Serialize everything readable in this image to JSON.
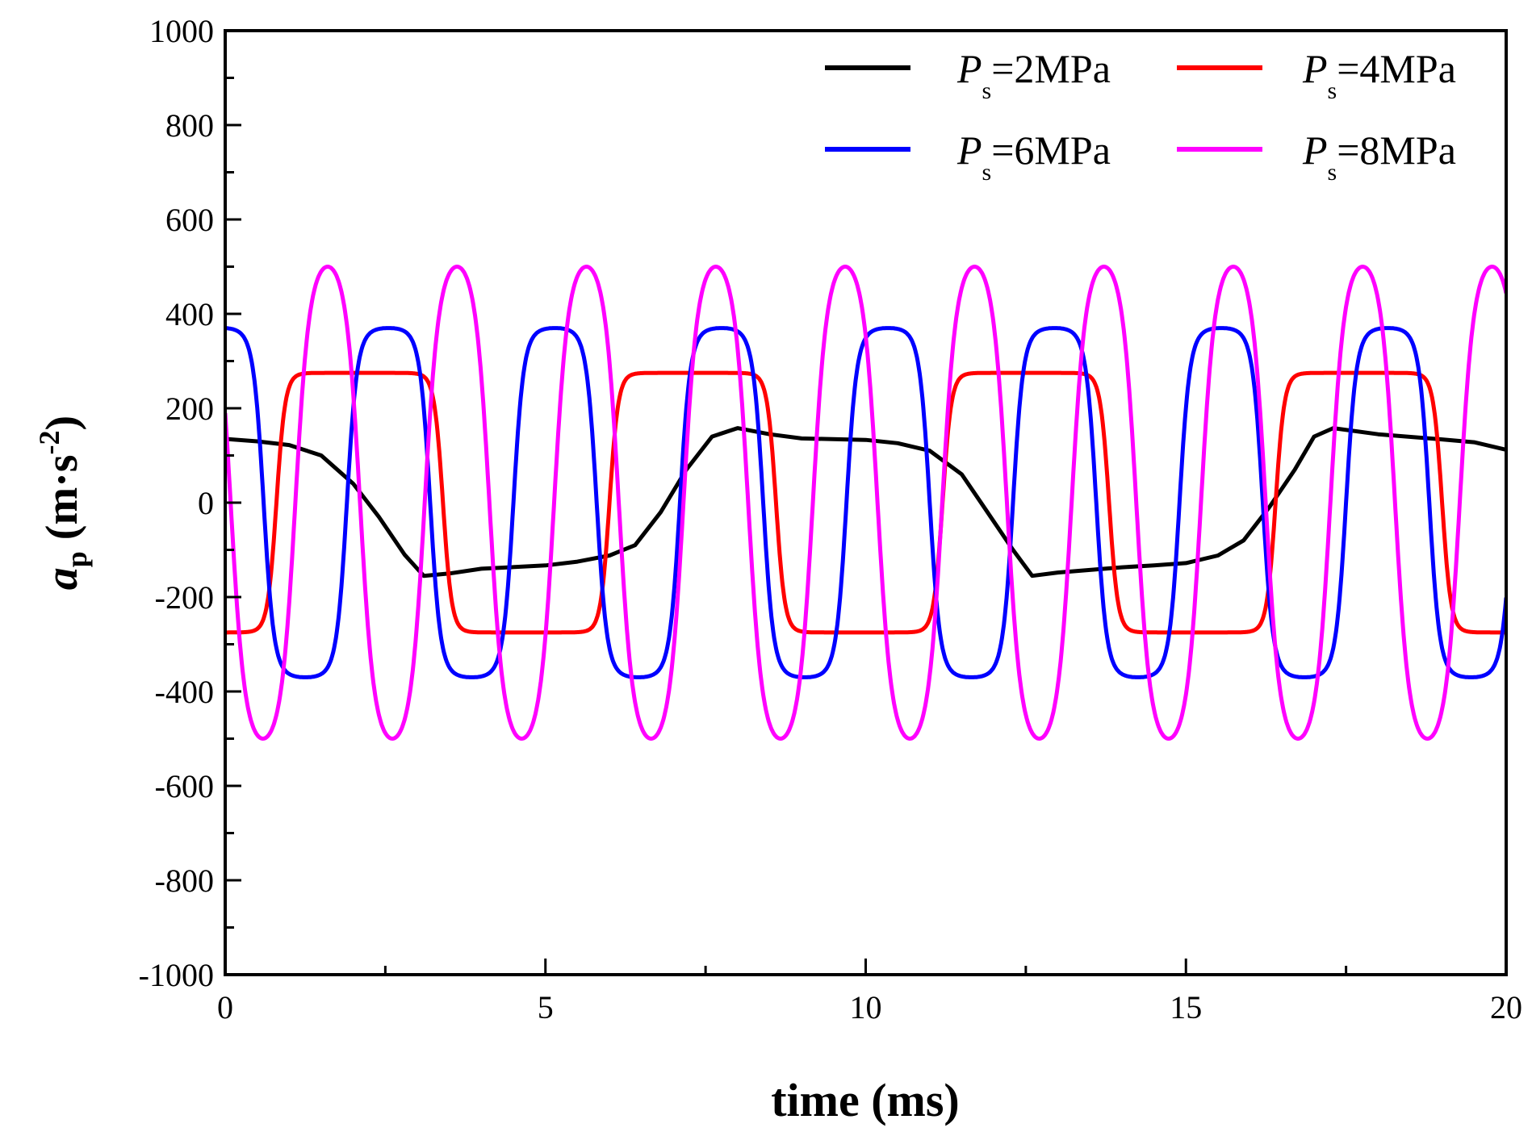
{
  "chart_data": {
    "type": "line",
    "title": "",
    "xlabel": "time (ms)",
    "ylabel": {
      "symbol": "a",
      "subscript": "p",
      "unit_open": "(m·s",
      "unit_sup": "-2",
      "unit_close": ")"
    },
    "xlim": [
      0,
      20
    ],
    "ylim": [
      -1000,
      1000
    ],
    "xticks": [
      0,
      5,
      10,
      15,
      20
    ],
    "xtick_labels": [
      "0",
      "5",
      "10",
      "15",
      "20"
    ],
    "yticks": [
      -1000,
      -800,
      -600,
      -400,
      -200,
      0,
      200,
      400,
      600,
      800,
      1000
    ],
    "ytick_labels": [
      "-1000",
      "-800",
      "-600",
      "-400",
      "-200",
      "0",
      "200",
      "400",
      "600",
      "800",
      "1000"
    ],
    "grid": false,
    "legend_position": "top-right",
    "series": [
      {
        "name": "Ps=2MPa",
        "legend": {
          "p": "P",
          "sub": "s",
          "rest": "=2MPa"
        },
        "color": "#000000",
        "x": [
          0,
          0.5,
          1.0,
          1.5,
          2.0,
          2.4,
          2.8,
          3.1,
          3.5,
          4.0,
          5.0,
          5.5,
          6.0,
          6.4,
          6.8,
          7.2,
          7.6,
          8.0,
          8.5,
          9.0,
          10.0,
          10.5,
          11.0,
          11.5,
          11.9,
          12.3,
          12.6,
          13.0,
          14.0,
          14.5,
          15.0,
          15.5,
          15.9,
          16.3,
          16.7,
          17.0,
          17.3,
          18.0,
          19.0,
          19.5,
          20.0
        ],
        "values": [
          135,
          130,
          122,
          100,
          40,
          -30,
          -110,
          -155,
          -150,
          -140,
          -133,
          -125,
          -112,
          -90,
          -20,
          70,
          140,
          158,
          145,
          136,
          133,
          126,
          110,
          60,
          -20,
          -100,
          -155,
          -148,
          -137,
          -133,
          -128,
          -112,
          -80,
          -10,
          70,
          140,
          158,
          145,
          134,
          128,
          112
        ]
      },
      {
        "name": "Ps=4MPa",
        "legend": {
          "p": "P",
          "sub": "s",
          "rest": "=4MPa"
        },
        "color": "#ff0000",
        "type": "square-wave",
        "amplitude": 275,
        "period": 5.2,
        "phase": 2.1,
        "sharpness": 6
      },
      {
        "name": "Ps=6MPa",
        "legend": {
          "p": "P",
          "sub": "s",
          "rest": "=6MPa"
        },
        "color": "#0000ff",
        "type": "square-wave",
        "amplitude": 370,
        "period": 2.6,
        "phase": -0.05,
        "sharpness": 2.5
      },
      {
        "name": "Ps=8MPa",
        "legend": {
          "p": "P",
          "sub": "s",
          "rest": "=8MPa"
        },
        "color": "#ff00ff",
        "type": "square-wave",
        "amplitude": 500,
        "period": 2.02,
        "phase": -0.42,
        "sharpness": 1.3
      }
    ]
  }
}
